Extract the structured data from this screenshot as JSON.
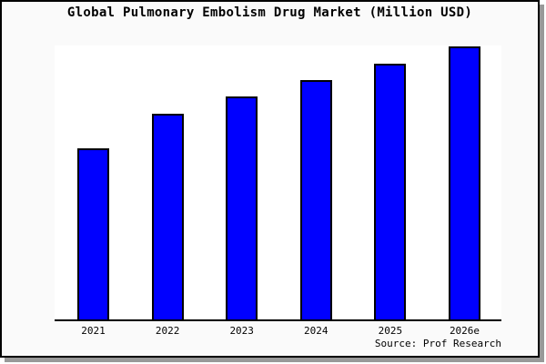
{
  "title": "Global Pulmonary Embolism Drug Market (Million USD)",
  "source_note": "Source: Prof Research",
  "colors": {
    "bar_fill": "#0000ff",
    "bar_border": "#000000",
    "frame_background": "#fafafa",
    "plot_background": "#ffffff",
    "frame_border": "#000000",
    "frame_shadow": "#999999",
    "axis_line": "#000000",
    "text": "#000000"
  },
  "chart_data": {
    "type": "bar",
    "title": "Global Pulmonary Embolism Drug Market (Million USD)",
    "categories": [
      "2021",
      "2022",
      "2023",
      "2024",
      "2025",
      "2026e"
    ],
    "values": [
      62.5,
      75.1,
      81.4,
      87.4,
      93.4,
      99.7
    ],
    "xlabel": "",
    "ylabel": "",
    "ylim": [
      0,
      100
    ],
    "value_note": "No y-axis scale shown in chart; values estimated as percent of plot height",
    "grid": false,
    "legend": false,
    "y_axis_labels": false,
    "source_note": "Source: Prof Research"
  }
}
